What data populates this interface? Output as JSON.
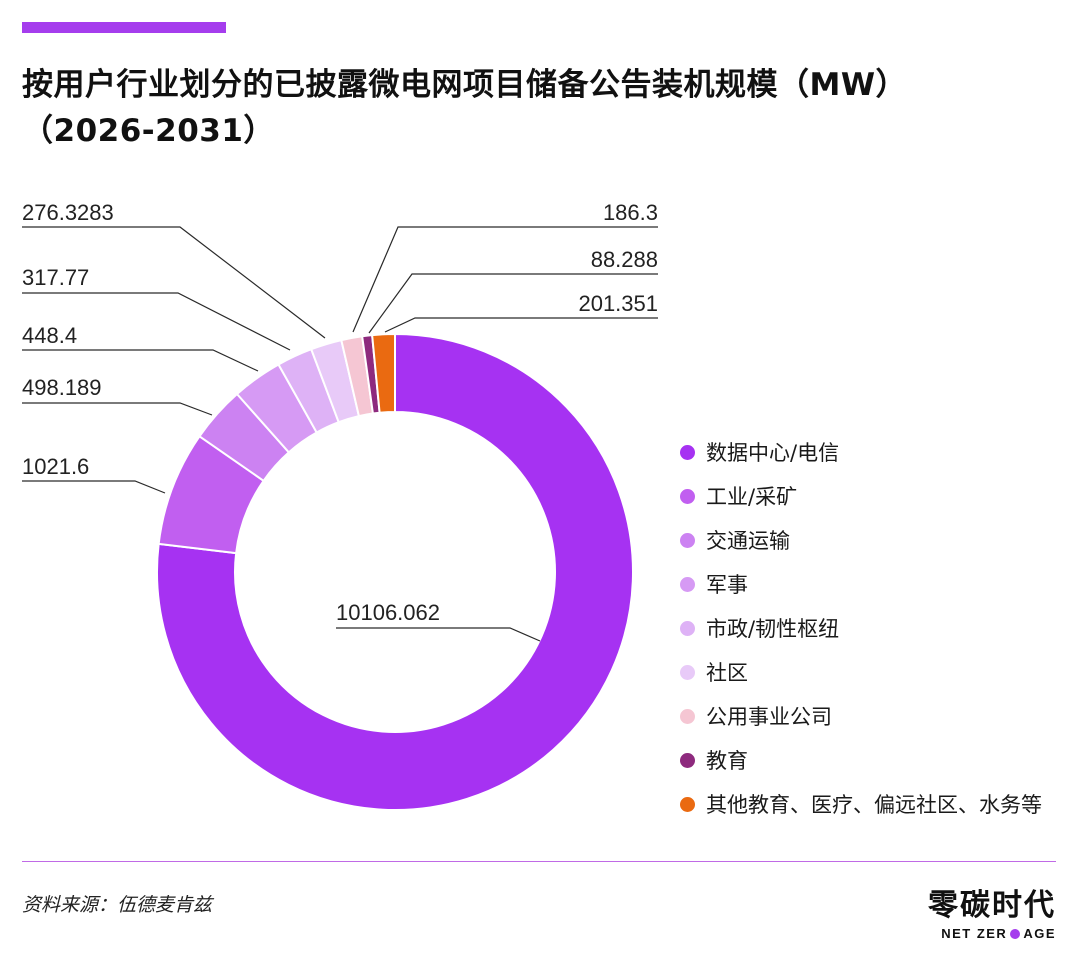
{
  "title": "按用户行业划分的已披露微电网项目储备公告装机规模（MW）（2026-2031）",
  "source": "资料来源：伍德麦肯兹",
  "brand": {
    "cn": "零碳时代",
    "en_before": "NET ZER",
    "en_after": "AGE"
  },
  "colors": {
    "accent": "#a53ded",
    "divider": "#c06ae6"
  },
  "chart_data": {
    "type": "pie",
    "variant": "donut",
    "title": "按用户行业划分的已披露微电网项目储备公告装机规模（MW）（2026-2031）",
    "unit": "MW",
    "legend_position": "right",
    "categories": [
      "数据中心/电信",
      "工业/采矿",
      "交通运输",
      "军事",
      "市政/韧性枢纽",
      "社区",
      "公用事业公司",
      "教育",
      "其他教育、医疗、偏远社区、水务等"
    ],
    "values": [
      10106.062,
      1021.6,
      498.189,
      448.4,
      317.77,
      276.3283,
      186.3,
      88.288,
      201.351
    ],
    "labels": [
      "10106.062",
      "1021.6",
      "498.189",
      "448.4",
      "317.77",
      "276.3283",
      "186.3",
      "88.288",
      "201.351"
    ],
    "colors": [
      "#a632f2",
      "#c15ff0",
      "#cc82f2",
      "#d69af4",
      "#deb2f6",
      "#e8caf8",
      "#f5c6d3",
      "#8e2a7e",
      "#ea6a11"
    ]
  }
}
